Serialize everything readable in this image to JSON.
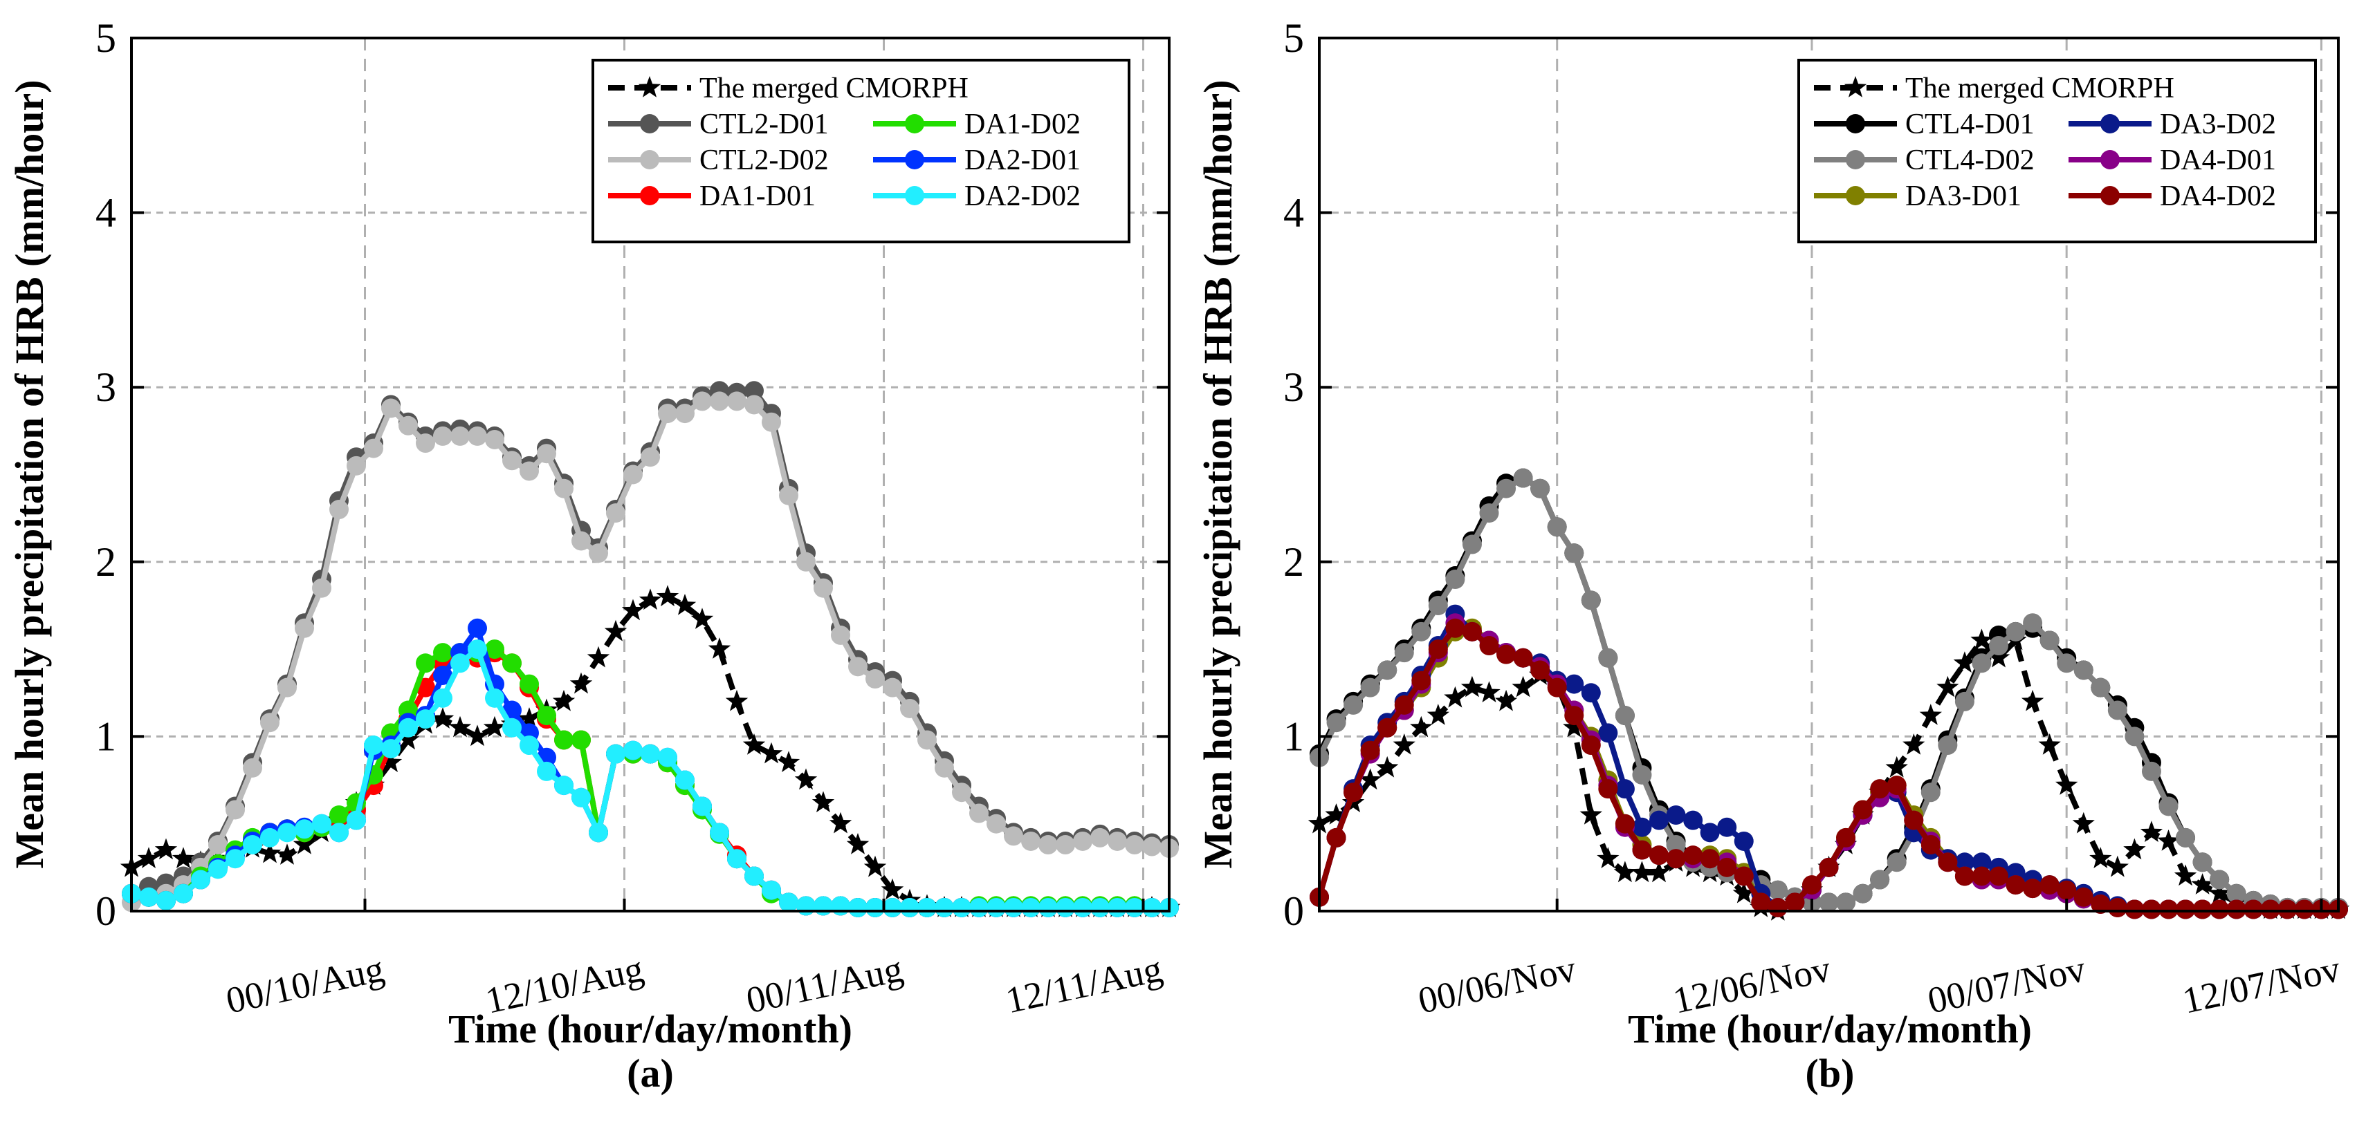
{
  "chart_data": [
    {
      "type": "line",
      "panel_label": "(a)",
      "xlabel": "Time (hour/day/month)",
      "ylabel": "Mean hourly precipitation of HRB (mm/hour)",
      "ylim": [
        0,
        5
      ],
      "yticks": [
        0,
        1,
        2,
        3,
        4,
        5
      ],
      "x_range_hours": [
        0,
        60
      ],
      "xticks": [
        {
          "hour": 13.5,
          "label": "00/10/Aug"
        },
        {
          "hour": 28.5,
          "label": "12/10/Aug"
        },
        {
          "hour": 43.5,
          "label": "00/11/Aug"
        },
        {
          "hour": 58.5,
          "label": "12/11/Aug"
        }
      ],
      "grid": true,
      "legend_position": "top-right",
      "series": [
        {
          "name": "The merged CMORPH",
          "color": "#000000",
          "dash": "dash",
          "marker": "star",
          "values": [
            0.25,
            0.3,
            0.35,
            0.3,
            0.28,
            0.3,
            0.33,
            0.36,
            0.33,
            0.32,
            0.38,
            0.45,
            0.52,
            0.62,
            0.72,
            0.85,
            0.98,
            1.07,
            1.1,
            1.05,
            1.0,
            1.05,
            1.07,
            1.1,
            1.15,
            1.2,
            1.3,
            1.45,
            1.6,
            1.72,
            1.78,
            1.8,
            1.75,
            1.67,
            1.5,
            1.2,
            0.95,
            0.9,
            0.85,
            0.75,
            0.62,
            0.5,
            0.38,
            0.25,
            0.12,
            0.06,
            0.03,
            0.02,
            0.02,
            0.02,
            0.02,
            0.02,
            0.02,
            0.02,
            0.02,
            0.02,
            0.02,
            0.02,
            0.02,
            0.02,
            0.02
          ]
        },
        {
          "name": "CTL2-D01",
          "color": "#555555",
          "dash": "solid",
          "marker": "circle",
          "values": [
            0.1,
            0.14,
            0.16,
            0.2,
            0.28,
            0.4,
            0.6,
            0.85,
            1.1,
            1.3,
            1.65,
            1.9,
            2.35,
            2.6,
            2.68,
            2.9,
            2.8,
            2.72,
            2.75,
            2.76,
            2.75,
            2.72,
            2.6,
            2.55,
            2.65,
            2.45,
            2.18,
            2.08,
            2.3,
            2.52,
            2.63,
            2.88,
            2.88,
            2.95,
            2.98,
            2.97,
            2.98,
            2.85,
            2.42,
            2.05,
            1.88,
            1.62,
            1.44,
            1.37,
            1.32,
            1.2,
            1.02,
            0.86,
            0.72,
            0.6,
            0.53,
            0.45,
            0.42,
            0.4,
            0.4,
            0.42,
            0.44,
            0.42,
            0.4,
            0.39,
            0.38
          ]
        },
        {
          "name": "CTL2-D02",
          "color": "#bbbbbb",
          "dash": "solid",
          "marker": "circle",
          "values": [
            0.05,
            0.08,
            0.1,
            0.15,
            0.25,
            0.38,
            0.58,
            0.82,
            1.08,
            1.28,
            1.62,
            1.85,
            2.3,
            2.55,
            2.65,
            2.88,
            2.78,
            2.68,
            2.72,
            2.72,
            2.72,
            2.7,
            2.58,
            2.52,
            2.62,
            2.42,
            2.12,
            2.05,
            2.28,
            2.5,
            2.6,
            2.85,
            2.85,
            2.92,
            2.92,
            2.92,
            2.9,
            2.8,
            2.38,
            2.0,
            1.85,
            1.58,
            1.4,
            1.33,
            1.28,
            1.16,
            0.98,
            0.82,
            0.68,
            0.56,
            0.5,
            0.43,
            0.4,
            0.38,
            0.38,
            0.4,
            0.42,
            0.4,
            0.38,
            0.37,
            0.36
          ]
        },
        {
          "name": "DA1-D01",
          "color": "#ff0000",
          "dash": "solid",
          "marker": "circle",
          "values": [
            0.1,
            0.08,
            0.06,
            0.1,
            0.18,
            0.25,
            0.32,
            0.4,
            0.45,
            0.47,
            0.45,
            0.48,
            0.5,
            0.58,
            0.72,
            0.95,
            1.1,
            1.28,
            1.42,
            1.45,
            1.45,
            1.48,
            1.42,
            1.28,
            1.1,
            0.98,
            0.98,
            0.45,
            0.9,
            0.9,
            0.9,
            0.85,
            0.72,
            0.6,
            0.45,
            0.32,
            0.2,
            0.12,
            0.05,
            0.03,
            0.03,
            0.03,
            0.02,
            0.02,
            0.02,
            0.02,
            0.02,
            0.02,
            0.02,
            0.02,
            0.02,
            0.02,
            0.02,
            0.02,
            0.02,
            0.02,
            0.02,
            0.02,
            0.02,
            0.02,
            0.02
          ]
        },
        {
          "name": "DA1-D02",
          "color": "#22dd00",
          "dash": "solid",
          "marker": "circle",
          "values": [
            0.1,
            0.08,
            0.06,
            0.1,
            0.2,
            0.27,
            0.35,
            0.42,
            0.45,
            0.47,
            0.45,
            0.48,
            0.55,
            0.62,
            0.78,
            1.02,
            1.15,
            1.42,
            1.48,
            1.48,
            1.48,
            1.5,
            1.42,
            1.3,
            1.12,
            0.98,
            0.98,
            0.45,
            0.9,
            0.9,
            0.9,
            0.85,
            0.72,
            0.58,
            0.44,
            0.3,
            0.2,
            0.1,
            0.05,
            0.03,
            0.03,
            0.03,
            0.02,
            0.02,
            0.02,
            0.02,
            0.02,
            0.02,
            0.02,
            0.03,
            0.03,
            0.03,
            0.03,
            0.03,
            0.03,
            0.03,
            0.03,
            0.03,
            0.03,
            0.02,
            0.02
          ]
        },
        {
          "name": "DA2-D01",
          "color": "#0033ff",
          "dash": "solid",
          "marker": "circle",
          "values": [
            0.1,
            0.08,
            0.06,
            0.1,
            0.18,
            0.25,
            0.32,
            0.4,
            0.45,
            0.47,
            0.48,
            0.5,
            0.45,
            0.52,
            0.92,
            0.95,
            1.08,
            1.12,
            1.35,
            1.48,
            1.62,
            1.3,
            1.15,
            1.02,
            0.88,
            0.72,
            0.65,
            0.45,
            0.9,
            0.92,
            0.9,
            0.88,
            0.75,
            0.6,
            0.45,
            0.3,
            0.2,
            0.12,
            0.05,
            0.03,
            0.03,
            0.03,
            0.02,
            0.02,
            0.02,
            0.02,
            0.02,
            0.02,
            0.02,
            0.02,
            0.02,
            0.02,
            0.02,
            0.02,
            0.02,
            0.02,
            0.02,
            0.02,
            0.02,
            0.02,
            0.02
          ]
        },
        {
          "name": "DA2-D02",
          "color": "#22eeff",
          "dash": "solid",
          "marker": "circle",
          "values": [
            0.1,
            0.08,
            0.06,
            0.1,
            0.18,
            0.24,
            0.3,
            0.38,
            0.42,
            0.45,
            0.47,
            0.5,
            0.45,
            0.52,
            0.95,
            0.93,
            1.05,
            1.1,
            1.22,
            1.42,
            1.5,
            1.22,
            1.05,
            0.95,
            0.8,
            0.72,
            0.65,
            0.45,
            0.9,
            0.92,
            0.9,
            0.88,
            0.75,
            0.6,
            0.45,
            0.3,
            0.2,
            0.12,
            0.05,
            0.03,
            0.03,
            0.03,
            0.02,
            0.02,
            0.02,
            0.02,
            0.02,
            0.02,
            0.02,
            0.02,
            0.02,
            0.02,
            0.02,
            0.02,
            0.02,
            0.02,
            0.02,
            0.02,
            0.02,
            0.02,
            0.02
          ]
        }
      ]
    },
    {
      "type": "line",
      "panel_label": "(b)",
      "xlabel": "Time (hour/day/month)",
      "ylabel": "Mean hourly precipitation of HRB (mm/hour)",
      "ylim": [
        0,
        5
      ],
      "yticks": [
        0,
        1,
        2,
        3,
        4,
        5
      ],
      "x_range_hours": [
        0,
        60
      ],
      "xticks": [
        {
          "hour": 14,
          "label": "00/06/Nov"
        },
        {
          "hour": 29,
          "label": "12/06/Nov"
        },
        {
          "hour": 44,
          "label": "00/07/Nov"
        },
        {
          "hour": 59,
          "label": "12/07/Nov"
        }
      ],
      "grid": true,
      "legend_position": "top-right",
      "series": [
        {
          "name": "The merged CMORPH",
          "color": "#000000",
          "dash": "dash",
          "marker": "star",
          "values": [
            0.5,
            0.55,
            0.62,
            0.75,
            0.82,
            0.95,
            1.05,
            1.12,
            1.22,
            1.28,
            1.25,
            1.2,
            1.28,
            1.35,
            1.3,
            1.05,
            0.55,
            0.3,
            0.22,
            0.22,
            0.22,
            0.28,
            0.25,
            0.22,
            0.2,
            0.1,
            0.02,
            0.0,
            0.05,
            0.12,
            0.25,
            0.38,
            0.55,
            0.68,
            0.82,
            0.95,
            1.12,
            1.28,
            1.42,
            1.55,
            1.45,
            1.55,
            1.2,
            0.95,
            0.72,
            0.5,
            0.3,
            0.25,
            0.35,
            0.45,
            0.4,
            0.2,
            0.15,
            0.1,
            0.05,
            0.02,
            0.01,
            0.01,
            0.01,
            0.01,
            0.01
          ]
        },
        {
          "name": "CTL4-D01",
          "color": "#000000",
          "dash": "solid",
          "marker": "circle",
          "values": [
            0.9,
            1.1,
            1.2,
            1.3,
            1.38,
            1.5,
            1.62,
            1.78,
            1.92,
            2.12,
            2.32,
            2.45,
            2.48,
            2.42,
            2.2,
            2.05,
            1.78,
            1.45,
            1.12,
            0.82,
            0.58,
            0.4,
            0.3,
            0.28,
            0.25,
            0.22,
            0.18,
            0.12,
            0.08,
            0.05,
            0.05,
            0.05,
            0.1,
            0.18,
            0.3,
            0.48,
            0.7,
            0.98,
            1.22,
            1.45,
            1.58,
            1.6,
            1.62,
            1.55,
            1.45,
            1.38,
            1.28,
            1.18,
            1.05,
            0.85,
            0.62,
            0.42,
            0.28,
            0.18,
            0.1,
            0.06,
            0.04,
            0.02,
            0.02,
            0.02,
            0.02
          ]
        },
        {
          "name": "CTL4-D02",
          "color": "#808080",
          "dash": "solid",
          "marker": "circle",
          "values": [
            0.88,
            1.08,
            1.18,
            1.28,
            1.38,
            1.48,
            1.6,
            1.75,
            1.9,
            2.1,
            2.28,
            2.42,
            2.48,
            2.42,
            2.2,
            2.05,
            1.78,
            1.45,
            1.12,
            0.78,
            0.55,
            0.38,
            0.28,
            0.25,
            0.22,
            0.22,
            0.15,
            0.12,
            0.08,
            0.05,
            0.05,
            0.05,
            0.1,
            0.18,
            0.28,
            0.45,
            0.68,
            0.95,
            1.2,
            1.42,
            1.52,
            1.6,
            1.65,
            1.55,
            1.42,
            1.38,
            1.28,
            1.15,
            1.0,
            0.8,
            0.6,
            0.42,
            0.28,
            0.18,
            0.1,
            0.06,
            0.04,
            0.02,
            0.02,
            0.02,
            0.02
          ]
        },
        {
          "name": "DA3-D01",
          "color": "#808000",
          "dash": "solid",
          "marker": "circle",
          "values": [
            0.08,
            0.42,
            0.68,
            0.92,
            1.05,
            1.15,
            1.28,
            1.45,
            1.6,
            1.62,
            1.55,
            1.48,
            1.45,
            1.4,
            1.3,
            1.15,
            1.0,
            0.75,
            0.5,
            0.38,
            0.32,
            0.3,
            0.3,
            0.32,
            0.3,
            0.22,
            0.05,
            0.02,
            0.05,
            0.12,
            0.25,
            0.42,
            0.58,
            0.68,
            0.72,
            0.55,
            0.42,
            0.3,
            0.2,
            0.18,
            0.18,
            0.15,
            0.13,
            0.12,
            0.1,
            0.07,
            0.04,
            0.02,
            0.01,
            0.01,
            0.01,
            0.01,
            0.01,
            0.01,
            0.01,
            0.01,
            0.01,
            0.01,
            0.01,
            0.01,
            0.01
          ]
        },
        {
          "name": "DA3-D02",
          "color": "#0a1a8a",
          "dash": "solid",
          "marker": "circle",
          "values": [
            0.08,
            0.42,
            0.7,
            0.95,
            1.08,
            1.2,
            1.35,
            1.52,
            1.7,
            1.6,
            1.55,
            1.48,
            1.45,
            1.42,
            1.32,
            1.3,
            1.25,
            1.02,
            0.7,
            0.48,
            0.52,
            0.55,
            0.52,
            0.45,
            0.48,
            0.4,
            0.1,
            0.02,
            0.05,
            0.12,
            0.25,
            0.4,
            0.55,
            0.65,
            0.68,
            0.45,
            0.35,
            0.3,
            0.28,
            0.28,
            0.25,
            0.22,
            0.18,
            0.15,
            0.13,
            0.1,
            0.06,
            0.03,
            0.01,
            0.01,
            0.01,
            0.01,
            0.01,
            0.01,
            0.01,
            0.01,
            0.01,
            0.01,
            0.01,
            0.01,
            0.01
          ]
        },
        {
          "name": "DA4-D01",
          "color": "#880088",
          "dash": "solid",
          "marker": "circle",
          "values": [
            0.08,
            0.42,
            0.68,
            0.9,
            1.05,
            1.15,
            1.3,
            1.48,
            1.65,
            1.6,
            1.55,
            1.48,
            1.45,
            1.4,
            1.3,
            1.15,
            0.98,
            0.72,
            0.48,
            0.35,
            0.32,
            0.3,
            0.3,
            0.3,
            0.28,
            0.2,
            0.05,
            0.02,
            0.05,
            0.12,
            0.25,
            0.4,
            0.55,
            0.65,
            0.7,
            0.52,
            0.4,
            0.28,
            0.2,
            0.18,
            0.18,
            0.15,
            0.13,
            0.12,
            0.1,
            0.07,
            0.04,
            0.02,
            0.01,
            0.01,
            0.01,
            0.01,
            0.01,
            0.01,
            0.01,
            0.01,
            0.01,
            0.01,
            0.01,
            0.01,
            0.01
          ]
        },
        {
          "name": "DA4-D02",
          "color": "#8b0000",
          "dash": "solid",
          "marker": "circle",
          "values": [
            0.08,
            0.42,
            0.68,
            0.92,
            1.05,
            1.18,
            1.32,
            1.5,
            1.62,
            1.6,
            1.52,
            1.47,
            1.45,
            1.38,
            1.28,
            1.12,
            0.95,
            0.7,
            0.5,
            0.35,
            0.32,
            0.3,
            0.32,
            0.3,
            0.25,
            0.2,
            0.05,
            0.02,
            0.05,
            0.15,
            0.25,
            0.42,
            0.58,
            0.7,
            0.72,
            0.52,
            0.38,
            0.28,
            0.2,
            0.2,
            0.2,
            0.15,
            0.13,
            0.15,
            0.12,
            0.08,
            0.04,
            0.02,
            0.01,
            0.01,
            0.01,
            0.01,
            0.01,
            0.01,
            0.01,
            0.01,
            0.01,
            0.01,
            0.01,
            0.01,
            0.01
          ]
        }
      ]
    }
  ]
}
